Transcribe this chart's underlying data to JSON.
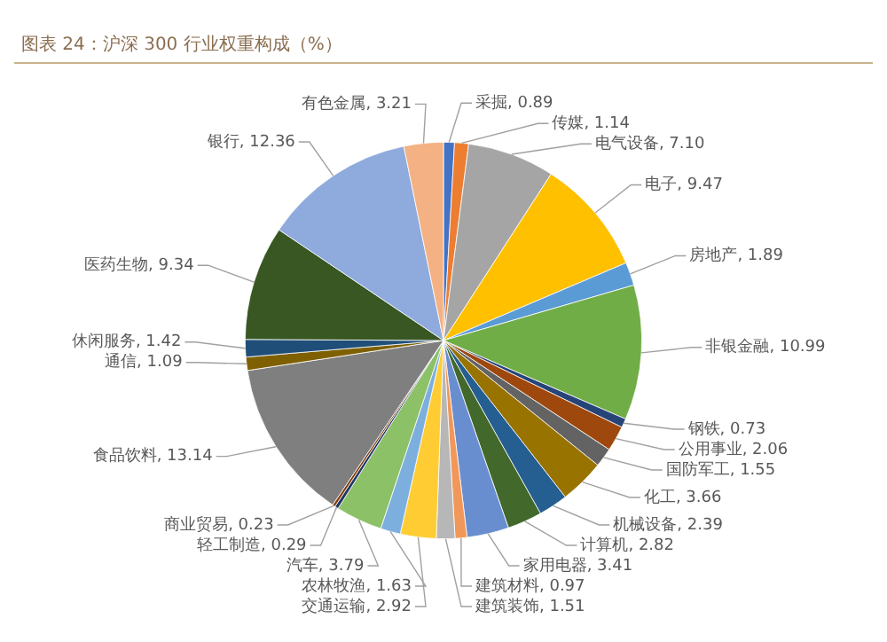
{
  "chart_data": {
    "type": "pie",
    "title": "图表 24：沪深 300 行业权重构成（%）",
    "categories": [
      "采掘",
      "传媒",
      "电气设备",
      "电子",
      "房地产",
      "非银金融",
      "钢铁",
      "公用事业",
      "国防军工",
      "化工",
      "机械设备",
      "计算机",
      "家用电器",
      "建筑材料",
      "建筑装饰",
      "交通运输",
      "农林牧渔",
      "汽车",
      "轻工制造",
      "商业贸易",
      "食品饮料",
      "通信",
      "休闲服务",
      "医药生物",
      "银行",
      "有色金属"
    ],
    "values": [
      0.89,
      1.14,
      7.1,
      9.47,
      1.89,
      10.99,
      0.73,
      2.06,
      1.55,
      3.66,
      2.39,
      2.82,
      3.41,
      0.97,
      1.51,
      2.92,
      1.63,
      3.79,
      0.29,
      0.23,
      13.14,
      1.09,
      1.42,
      9.34,
      12.36,
      3.21
    ],
    "value_labels": [
      "0.89",
      "1.14",
      "7.10",
      "9.47",
      "1.89",
      "10.99",
      "0.73",
      "2.06",
      "1.55",
      "3.66",
      "2.39",
      "2.82",
      "3.41",
      "0.97",
      "1.51",
      "2.92",
      "1.63",
      "3.79",
      "0.29",
      "0.23",
      "13.14",
      "1.09",
      "1.42",
      "9.34",
      "12.36",
      "3.21"
    ],
    "colors": [
      "#4472c4",
      "#ed7d31",
      "#a5a5a5",
      "#ffc000",
      "#5b9bd5",
      "#70ad47",
      "#264478",
      "#9e480e",
      "#636363",
      "#997300",
      "#255e91",
      "#43682b",
      "#698ed0",
      "#f1975a",
      "#b7b7b7",
      "#ffcd33",
      "#7cafdd",
      "#8cc168",
      "#203864",
      "#843c0c",
      "#7f7f7f",
      "#7f6000",
      "#1f4e79",
      "#385723",
      "#8faadc",
      "#f4b183"
    ]
  }
}
